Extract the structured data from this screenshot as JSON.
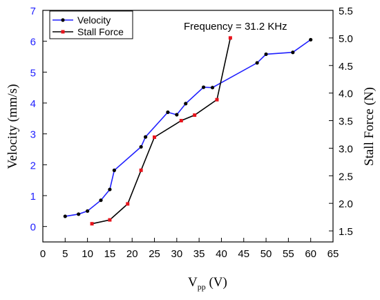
{
  "chart_data": {
    "type": "line",
    "annotation": "Frequency = 31.2 KHz",
    "xlabel": {
      "main": "V",
      "sub": "pp",
      "unit": " (V)"
    },
    "ylabel_left": "Velocity (mm/s)",
    "ylabel_right": "Stall Force (N)",
    "xlim": [
      0,
      65
    ],
    "xticks": [
      "0",
      "5",
      "10",
      "15",
      "20",
      "25",
      "30",
      "35",
      "40",
      "45",
      "50",
      "55",
      "60",
      "65"
    ],
    "ylim_left": [
      -0.5,
      7
    ],
    "yticks_left": [
      "0",
      "1",
      "2",
      "3",
      "4",
      "5",
      "6",
      "7"
    ],
    "ylim_right": [
      1.3,
      5.5
    ],
    "yticks_right": [
      "1.5",
      "2.0",
      "2.5",
      "3.0",
      "3.5",
      "4.0",
      "4.5",
      "5.0",
      "5.5"
    ],
    "legend": {
      "placement": "top-left"
    },
    "series": [
      {
        "name": "Velocity",
        "axis": "left",
        "color": "#1f1fff",
        "marker_color": "#000000",
        "marker": "circle",
        "x": [
          5,
          8,
          10,
          13,
          15,
          16,
          22,
          23,
          28,
          30,
          32,
          36,
          38,
          48,
          50,
          56,
          60
        ],
        "y": [
          0.33,
          0.4,
          0.5,
          0.85,
          1.2,
          1.82,
          2.58,
          2.9,
          3.7,
          3.62,
          3.98,
          4.51,
          4.5,
          5.3,
          5.58,
          5.64,
          6.05
        ]
      },
      {
        "name": "Stall Force",
        "axis": "right",
        "color": "#000000",
        "marker_color": "#e8141c",
        "marker": "square",
        "x": [
          11,
          15,
          19,
          22,
          25,
          31,
          34,
          39,
          42
        ],
        "y": [
          1.63,
          1.7,
          1.99,
          2.6,
          3.2,
          3.5,
          3.6,
          3.88,
          5.0
        ]
      }
    ]
  }
}
